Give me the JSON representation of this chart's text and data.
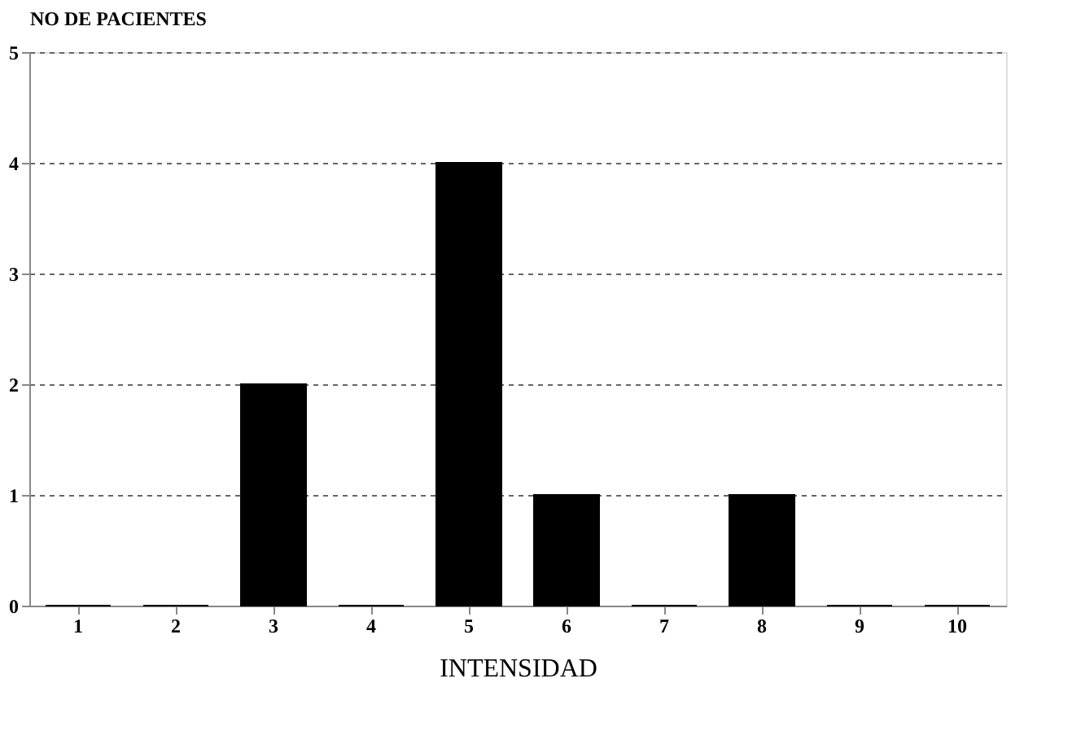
{
  "chart_data": {
    "type": "bar",
    "ylabel": "NO DE PACIENTES",
    "xlabel": "INTENSIDAD",
    "categories": [
      "1",
      "2",
      "3",
      "4",
      "5",
      "6",
      "7",
      "8",
      "9",
      "10"
    ],
    "values": [
      0,
      0,
      2,
      0,
      4,
      1,
      0,
      1,
      0,
      0
    ],
    "color": "#000000",
    "ylim": [
      0,
      5
    ],
    "yticks": [
      0,
      1,
      2,
      3,
      4,
      5
    ],
    "grid": "y"
  }
}
